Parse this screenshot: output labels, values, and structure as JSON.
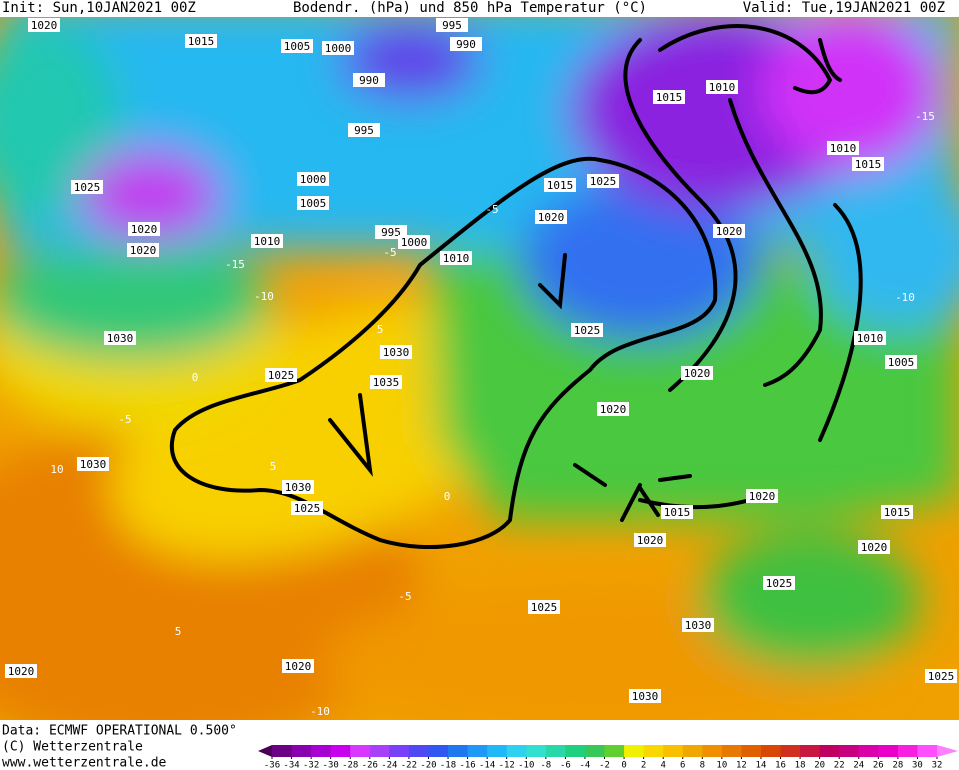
{
  "header": {
    "init": "Init: Sun,10JAN2021 00Z",
    "title": "Bodendr. (hPa) und 850 hPa Temperatur (°C)",
    "valid": "Valid: Tue,19JAN2021 00Z"
  },
  "footer": {
    "source": "Data: ECMWF OPERATIONAL 0.500°",
    "copyright": "(C) Wetterzentrale",
    "url": "www.wetterzentrale.de"
  },
  "colorbar": {
    "ticks": [
      -36,
      -34,
      -32,
      -30,
      -28,
      -26,
      -24,
      -22,
      -20,
      -18,
      -16,
      -14,
      -12,
      -10,
      -8,
      -6,
      -4,
      -2,
      0,
      2,
      4,
      6,
      8,
      10,
      12,
      14,
      16,
      18,
      20,
      22,
      24,
      26,
      28,
      30,
      32
    ],
    "colors": [
      "#4b0055",
      "#6b0085",
      "#8a00b0",
      "#a800d0",
      "#c800f0",
      "#d838ff",
      "#a840f8",
      "#7840f8",
      "#5048f0",
      "#3058f0",
      "#2078f0",
      "#2098f8",
      "#20b8f8",
      "#30d0f0",
      "#30e0d0",
      "#28d8a8",
      "#20d080",
      "#38c858",
      "#60d030",
      "#f0f000",
      "#f8d800",
      "#f8c000",
      "#f0a800",
      "#f09000",
      "#e87800",
      "#e06000",
      "#d84800",
      "#d03020",
      "#c81840",
      "#c00060",
      "#c80080",
      "#d800a8",
      "#e800c8",
      "#f820e0",
      "#ff50ff",
      "#ff80ff"
    ]
  },
  "map": {
    "isobar_labels": [
      "1020",
      "1015",
      "1005",
      "1000",
      "995",
      "990",
      "990",
      "995",
      "1000",
      "1005",
      "995",
      "1000",
      "1010",
      "1010",
      "1025",
      "1020",
      "1020",
      "1030",
      "1025",
      "1030",
      "1035",
      "1030",
      "1030",
      "1025",
      "1015",
      "1025",
      "1020",
      "1025",
      "1020",
      "1020",
      "1020",
      "1015",
      "1010",
      "1010",
      "1015",
      "1010",
      "1005",
      "1015",
      "1020",
      "1020",
      "1015",
      "1020",
      "1025",
      "1025",
      "1030",
      "1030",
      "1020",
      "1020",
      "1025"
    ],
    "isotherm_labels": [
      5,
      0,
      -5,
      10,
      -5,
      5,
      0,
      -10,
      -15,
      -5,
      -5,
      -10,
      -15,
      -10,
      5
    ]
  }
}
